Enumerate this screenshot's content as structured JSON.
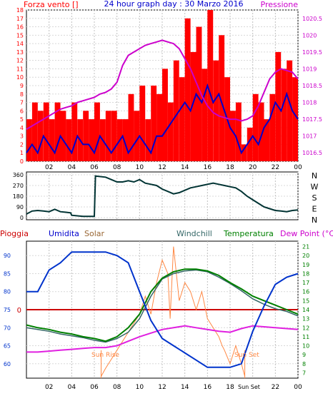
{
  "header": {
    "wind_title": "Forza vento",
    "wind_unit": "[]",
    "center_title": "24 hour graph day : 30 Marzo 2016",
    "pressure_title": "Pressione"
  },
  "legend": {
    "rain": "Pioggia",
    "humidity": "Umidita",
    "solar": "Solar",
    "windchill": "Windchill",
    "temperature": "Temperatura",
    "dewpoint": "Dew Point (°C)"
  },
  "annotations": {
    "sunrise": "Sun Rise",
    "sunset": "Sun Set",
    "sunset_axis": "Sun Set"
  },
  "colors": {
    "wind": "#ff0000",
    "wind_avg": "#0000cc",
    "pressure": "#cc00cc",
    "direction": "#003333",
    "humidity": "#0033cc",
    "solar": "#ff8844",
    "temperature": "#008000",
    "windchill": "#336666",
    "dewpoint": "#e020e0",
    "rain_ref": "#cc0000"
  },
  "chart_data": [
    {
      "type": "line",
      "ylim": [
        0,
        18
      ],
      "y_ticks": [
        "0",
        "1",
        "2",
        "3",
        "4",
        "5",
        "6",
        "7",
        "8",
        "9",
        "10",
        "11",
        "12",
        "13",
        "14",
        "15",
        "16",
        "17",
        "18"
      ],
      "y2lim": [
        1016.25,
        1020.75
      ],
      "y2_ticks": [
        "1016.5",
        "1017",
        "1017.5",
        "1018",
        "1018.5",
        "1019",
        "1019.5",
        "1020",
        "1020.5"
      ],
      "x_ticks": [
        "02",
        "04",
        "06",
        "08",
        "10",
        "12",
        "14",
        "16",
        "18",
        "20",
        "22",
        "00"
      ],
      "series": [
        {
          "name": "Forza vento",
          "x": [
            0,
            0.5,
            1,
            1.5,
            2,
            2.5,
            3,
            3.5,
            4,
            4.5,
            5,
            5.5,
            6,
            6.5,
            7,
            7.5,
            8,
            8.5,
            9,
            9.5,
            10,
            10.5,
            11,
            11.5,
            12,
            12.5,
            13,
            13.5,
            14,
            14.5,
            15,
            15.5,
            16,
            16.5,
            17,
            17.5,
            18,
            18.5,
            19,
            19.5,
            20,
            20.5,
            21,
            21.5,
            22,
            22.5,
            23,
            23.5,
            24
          ],
          "values": [
            5,
            7,
            6,
            7,
            5,
            7,
            6,
            5,
            7,
            5,
            6,
            5,
            7,
            5,
            6,
            6,
            5,
            5,
            8,
            6,
            9,
            5,
            9,
            8,
            11,
            7,
            12,
            10,
            17,
            13,
            16,
            11,
            18,
            12,
            15,
            10,
            6,
            7,
            2,
            4,
            8,
            7,
            5,
            8,
            13,
            11,
            12,
            10,
            9
          ]
        },
        {
          "name": "Wind avg",
          "x": [
            0,
            0.5,
            1,
            1.5,
            2,
            2.5,
            3,
            3.5,
            4,
            4.5,
            5,
            5.5,
            6,
            6.5,
            7,
            7.5,
            8,
            8.5,
            9,
            9.5,
            10,
            10.5,
            11,
            11.5,
            12,
            12.5,
            13,
            13.5,
            14,
            14.5,
            15,
            15.5,
            16,
            16.5,
            17,
            17.5,
            18,
            18.5,
            19,
            19.5,
            20,
            20.5,
            21,
            21.5,
            22,
            22.5,
            23,
            23.5,
            24
          ],
          "values": [
            1,
            2,
            1,
            3,
            2,
            1,
            3,
            2,
            1,
            3,
            2,
            2,
            1,
            3,
            2,
            1,
            2,
            3,
            1,
            2,
            3,
            2,
            1,
            3,
            3,
            4,
            5,
            6,
            7,
            6,
            8,
            7,
            9,
            7,
            8,
            6,
            4,
            3,
            1,
            2,
            3,
            2,
            4,
            5,
            7,
            6,
            8,
            6,
            5
          ]
        },
        {
          "name": "Pressione",
          "axis": "right",
          "x": [
            0,
            0.5,
            1,
            1.5,
            2,
            2.5,
            3,
            3.5,
            4,
            4.5,
            5,
            5.5,
            6,
            6.5,
            7,
            7.5,
            8,
            8.5,
            9,
            9.5,
            10,
            10.5,
            11,
            11.5,
            12,
            12.5,
            13,
            13.5,
            14,
            14.5,
            15,
            15.5,
            16,
            16.5,
            17,
            17.5,
            18,
            18.5,
            19,
            19.5,
            20,
            20.5,
            21,
            21.5,
            22,
            22.5,
            23,
            23.5,
            24
          ],
          "values": [
            1017.2,
            1017.3,
            1017.4,
            1017.5,
            1017.6,
            1017.7,
            1017.8,
            1017.85,
            1017.9,
            1018.0,
            1018.05,
            1018.1,
            1018.15,
            1018.25,
            1018.3,
            1018.4,
            1018.6,
            1019.1,
            1019.4,
            1019.5,
            1019.6,
            1019.7,
            1019.75,
            1019.8,
            1019.85,
            1019.8,
            1019.75,
            1019.6,
            1019.3,
            1019.0,
            1018.6,
            1018.2,
            1017.9,
            1017.7,
            1017.6,
            1017.55,
            1017.5,
            1017.5,
            1017.45,
            1017.5,
            1017.6,
            1017.9,
            1018.3,
            1018.7,
            1018.9,
            1019.0,
            1018.95,
            1018.9,
            1018.7
          ]
        }
      ]
    },
    {
      "type": "line",
      "ylim": [
        0,
        360
      ],
      "y_ticks": [
        "0",
        "90",
        "180",
        "270",
        "360"
      ],
      "right_labels": [
        "N",
        "W",
        "S",
        "E",
        "N"
      ],
      "x_ticks": [
        "02",
        "04",
        "06",
        "08",
        "10",
        "12",
        "14",
        "16",
        "18",
        "20",
        "22",
        "00"
      ],
      "series": [
        {
          "name": "Direzione vento",
          "x": [
            0,
            0.5,
            1,
            1.5,
            2,
            2.5,
            3,
            3.5,
            3.9,
            4,
            5,
            6,
            6.1,
            7,
            7.5,
            8,
            8.5,
            9,
            9.5,
            10,
            10.5,
            11,
            11.5,
            12,
            12.5,
            13,
            13.5,
            14,
            14.5,
            15,
            15.5,
            16,
            16.5,
            17,
            17.5,
            18,
            18.5,
            19,
            19.5,
            20,
            20.5,
            21,
            21.5,
            22,
            22.5,
            23,
            23.5,
            24
          ],
          "values": [
            30,
            55,
            60,
            55,
            50,
            70,
            50,
            45,
            40,
            20,
            10,
            10,
            350,
            340,
            320,
            300,
            300,
            310,
            300,
            320,
            290,
            280,
            270,
            240,
            220,
            200,
            210,
            230,
            250,
            260,
            270,
            280,
            290,
            280,
            270,
            260,
            250,
            220,
            180,
            150,
            120,
            90,
            75,
            60,
            55,
            50,
            60,
            65
          ]
        }
      ]
    },
    {
      "type": "line",
      "ylim": [
        56,
        94
      ],
      "y_ticks": [
        "60",
        "65",
        "70",
        "75",
        "80",
        "85",
        "90"
      ],
      "y2lim": [
        6.4,
        21.6
      ],
      "y2_ticks": [
        "7",
        "8",
        "9",
        "10",
        "11",
        "12",
        "13",
        "14",
        "15",
        "16",
        "17",
        "18",
        "19",
        "20",
        "21"
      ],
      "x_ticks": [
        "02",
        "04",
        "06",
        "08",
        "10",
        "12",
        "14",
        "16",
        "18",
        "",
        "22",
        "00"
      ],
      "rain_reference": "0",
      "series": [
        {
          "name": "Umidita",
          "x": [
            0,
            1,
            2,
            3,
            4,
            5,
            6,
            7,
            8,
            9,
            10,
            11,
            12,
            13,
            14,
            15,
            16,
            17,
            18,
            19,
            20,
            21,
            22,
            23,
            24
          ],
          "values": [
            80,
            80,
            86,
            88,
            91,
            91,
            91,
            91,
            90,
            88,
            80,
            72,
            67,
            65,
            63,
            61,
            59,
            59,
            59,
            60,
            69,
            76,
            82,
            84,
            85
          ]
        },
        {
          "name": "Temperatura",
          "axis": "right",
          "x": [
            0,
            1,
            2,
            3,
            4,
            5,
            6,
            7,
            8,
            9,
            10,
            11,
            12,
            13,
            14,
            15,
            16,
            17,
            18,
            19,
            20,
            21,
            22,
            23,
            24
          ],
          "values": [
            12.3,
            12,
            11.8,
            11.5,
            11.3,
            11,
            10.8,
            10.5,
            11,
            12,
            13.5,
            16,
            17.5,
            18.2,
            18.5,
            18.5,
            18.3,
            17.8,
            17,
            16.3,
            15.5,
            15,
            14.5,
            14,
            13.5
          ]
        },
        {
          "name": "Windchill",
          "axis": "right",
          "x": [
            0,
            1,
            2,
            3,
            4,
            5,
            6,
            7,
            8,
            9,
            10,
            11,
            12,
            13,
            14,
            15,
            16,
            17,
            18,
            19,
            20,
            21,
            22,
            23,
            24
          ],
          "values": [
            12,
            11.8,
            11.6,
            11.3,
            11.1,
            10.9,
            10.6,
            10.4,
            10.8,
            11.5,
            13,
            15.5,
            17.4,
            18,
            18.3,
            18.4,
            18.2,
            17.6,
            16.9,
            16.1,
            15.2,
            14.6,
            14.1,
            13.8,
            13.3
          ]
        },
        {
          "name": "Dew Point (°C)",
          "axis": "right",
          "x": [
            0,
            1,
            2,
            3,
            4,
            5,
            6,
            7,
            8,
            9,
            10,
            11,
            12,
            13,
            14,
            15,
            16,
            17,
            18,
            19,
            20,
            21,
            22,
            23,
            24
          ],
          "values": [
            9.3,
            9.3,
            9.4,
            9.5,
            9.6,
            9.7,
            9.8,
            9.8,
            10,
            10.5,
            11,
            11.4,
            11.8,
            12,
            12.2,
            12,
            11.8,
            11.6,
            11.5,
            11.9,
            12.2,
            12.1,
            12,
            11.9,
            11.8
          ]
        },
        {
          "name": "Solar",
          "axis": "right",
          "x": [
            6.6,
            7,
            7.5,
            8,
            8.5,
            9,
            9.5,
            10,
            10.5,
            11,
            11.5,
            12,
            12.5,
            12.7,
            13,
            13.5,
            14,
            14.5,
            15,
            15.5,
            16,
            16.5,
            17,
            17.3,
            17.5,
            18,
            18.5,
            19,
            19.3
          ],
          "values": [
            6.6,
            7.5,
            8.5,
            9.5,
            10.5,
            11.5,
            12.5,
            13.5,
            15.5,
            13.5,
            17,
            19.5,
            18,
            13,
            21,
            15,
            17,
            16,
            14,
            16,
            13,
            12,
            11,
            10,
            9.5,
            8,
            10,
            8,
            6.6
          ]
        }
      ]
    }
  ]
}
